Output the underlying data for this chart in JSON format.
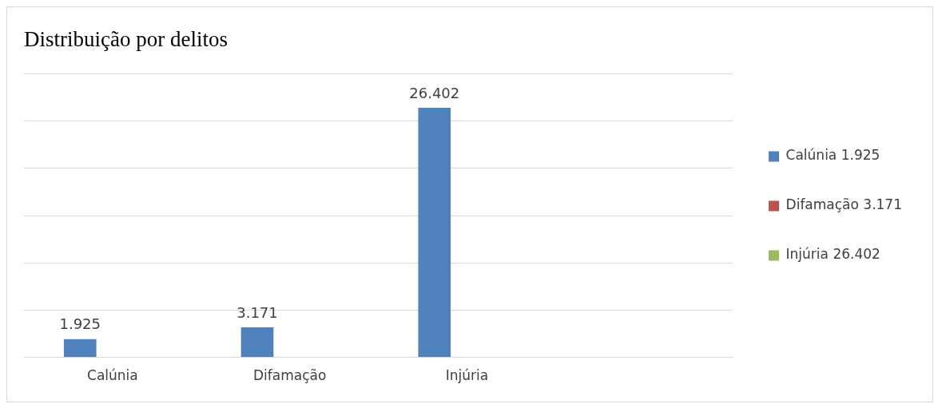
{
  "chart_data": {
    "type": "bar",
    "title": "Distribuição por delitos",
    "categories": [
      "Calúnia",
      "Difamação",
      "Injúria",
      null
    ],
    "series": [
      {
        "name": "Calúnia 1.925",
        "color": "#4f81bd",
        "values": [
          1925,
          3171,
          26402,
          null
        ],
        "value_labels": [
          "1.925",
          "3.171",
          "26.402",
          null
        ]
      },
      {
        "name": "Difamação 3.171",
        "color": "#c0504d",
        "values": [
          null,
          null,
          null,
          null
        ]
      },
      {
        "name": "Injúria 26.402",
        "color": "#9bbb59",
        "values": [
          null,
          null,
          null,
          null
        ]
      }
    ],
    "grid": "y",
    "legend": "right",
    "tick_labels": "x"
  }
}
